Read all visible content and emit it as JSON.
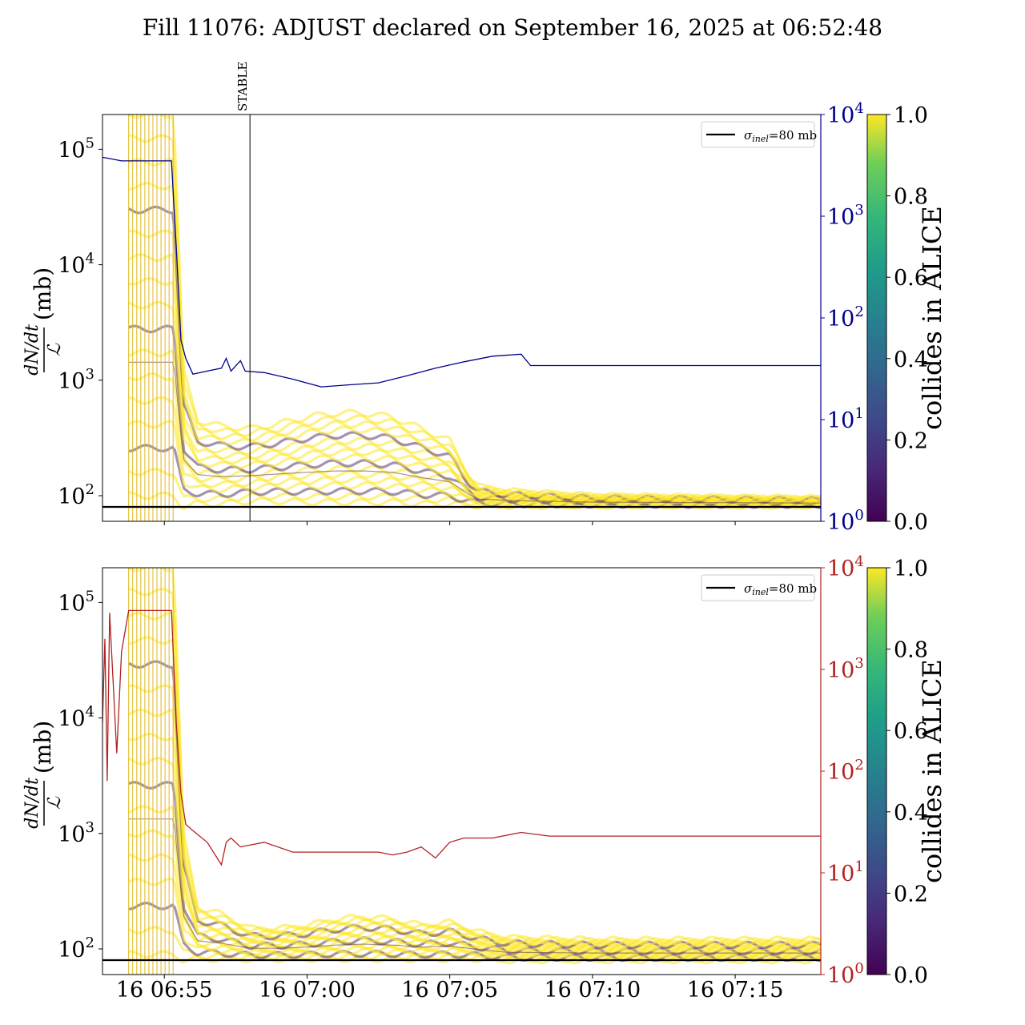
{
  "title": "Fill 11076: ADJUST declared on September 16, 2025 at 06:52:48",
  "chart_data": [
    {
      "type": "line",
      "panel": "top",
      "ylabel_fraction_num": "dN/dt",
      "ylabel_fraction_den": "ℒ",
      "ylabel_unit": "(mb)",
      "yscale": "log",
      "ylim": [
        60,
        200000
      ],
      "y_ticks": [
        {
          "v": 100,
          "base": "10",
          "exp": "2"
        },
        {
          "v": 1000,
          "base": "10",
          "exp": "3"
        },
        {
          "v": 10000,
          "base": "10",
          "exp": "4"
        },
        {
          "v": 100000,
          "base": "10",
          "exp": "5"
        }
      ],
      "xlim": [
        "06:52:50",
        "07:18:00"
      ],
      "x_tick_positions": [
        "06:55",
        "07:00",
        "07:05",
        "07:10",
        "07:15"
      ],
      "right_axis": {
        "color": "#00008b",
        "yscale": "log",
        "ylim": [
          1,
          10000
        ],
        "ticks": [
          {
            "v": 1,
            "base": "10",
            "exp": "0"
          },
          {
            "v": 10,
            "base": "10",
            "exp": "1"
          },
          {
            "v": 100,
            "base": "10",
            "exp": "2"
          },
          {
            "v": 1000,
            "base": "10",
            "exp": "3"
          },
          {
            "v": 10000,
            "base": "10",
            "exp": "4"
          }
        ],
        "series": {
          "x": [
            "06:52:50",
            "06:53:30",
            "06:54:30",
            "06:55:15",
            "06:55:25",
            "06:55:35",
            "06:55:45",
            "06:56:00",
            "06:56:30",
            "06:57:00",
            "06:57:10",
            "06:57:20",
            "06:57:40",
            "06:57:50",
            "06:58:30",
            "06:59:30",
            "07:00:30",
            "07:01:30",
            "07:02:30",
            "07:03:30",
            "07:04:30",
            "07:05:30",
            "07:06:30",
            "07:07:30",
            "07:07:50",
            "07:10:00",
            "07:14:00",
            "07:18:00"
          ],
          "y": [
            3800,
            3500,
            3500,
            3500,
            500,
            60,
            40,
            28,
            30,
            32,
            40,
            30,
            38,
            30,
            29,
            25,
            21,
            22,
            23,
            27,
            32,
            37,
            42,
            44,
            34,
            34,
            34,
            34
          ]
        }
      },
      "annotation": {
        "label": "STABLE",
        "x": "06:58:00"
      },
      "legend": {
        "label_sym": "σ",
        "label_sub": "inel",
        "label_rest": "=80 mb",
        "placement": "upper right"
      },
      "reference_line": {
        "y": 80,
        "color": "#000000"
      },
      "bunch_envelope": {
        "x": [
          "06:53:45",
          "06:55:20",
          "06:55:40",
          "06:56:10",
          "06:57:00",
          "06:58:00",
          "06:59:00",
          "07:00:00",
          "07:01:00",
          "07:02:00",
          "07:03:00",
          "07:04:00",
          "07:05:00",
          "07:05:40",
          "07:06:00",
          "07:07:00",
          "07:10:00",
          "07:18:00"
        ],
        "upper": [
          200000,
          200000,
          1200,
          450,
          400,
          380,
          420,
          480,
          520,
          520,
          480,
          380,
          300,
          150,
          120,
          110,
          100,
          95
        ],
        "lower": [
          100,
          100,
          80,
          85,
          85,
          90,
          90,
          88,
          88,
          88,
          88,
          85,
          85,
          84,
          82,
          82,
          82,
          82
        ]
      }
    },
    {
      "type": "line",
      "panel": "bottom",
      "ylabel_fraction_num": "dN/dt",
      "ylabel_fraction_den": "ℒ",
      "ylabel_unit": "(mb)",
      "yscale": "log",
      "ylim": [
        60,
        200000
      ],
      "y_ticks": [
        {
          "v": 100,
          "base": "10",
          "exp": "2"
        },
        {
          "v": 1000,
          "base": "10",
          "exp": "3"
        },
        {
          "v": 10000,
          "base": "10",
          "exp": "4"
        },
        {
          "v": 100000,
          "base": "10",
          "exp": "5"
        }
      ],
      "xlim": [
        "06:52:50",
        "07:18:00"
      ],
      "x_tick_labels": [
        "16 06:55",
        "16 07:00",
        "16 07:05",
        "16 07:10",
        "16 07:15"
      ],
      "x_tick_positions": [
        "06:55",
        "07:00",
        "07:05",
        "07:10",
        "07:15"
      ],
      "right_axis": {
        "color": "#b22222",
        "yscale": "log",
        "ylim": [
          1,
          10000
        ],
        "ticks": [
          {
            "v": 1,
            "base": "10",
            "exp": "0"
          },
          {
            "v": 10,
            "base": "10",
            "exp": "1"
          },
          {
            "v": 100,
            "base": "10",
            "exp": "2"
          },
          {
            "v": 1000,
            "base": "10",
            "exp": "3"
          },
          {
            "v": 10000,
            "base": "10",
            "exp": "4"
          }
        ],
        "series": {
          "x": [
            "06:52:50",
            "06:52:55",
            "06:53:00",
            "06:53:05",
            "06:53:20",
            "06:53:30",
            "06:53:45",
            "06:54:30",
            "06:55:15",
            "06:55:25",
            "06:55:35",
            "06:55:45",
            "06:56:00",
            "06:56:30",
            "06:57:00",
            "06:57:10",
            "06:57:20",
            "06:57:40",
            "06:58:30",
            "06:59:30",
            "07:00:30",
            "07:01:30",
            "07:02:30",
            "07:03:00",
            "07:03:30",
            "07:04:00",
            "07:04:30",
            "07:05:00",
            "07:05:30",
            "07:06:30",
            "07:07:30",
            "07:08:30",
            "07:10:00",
            "07:14:00",
            "07:18:00"
          ],
          "y": [
            300,
            2000,
            80,
            3600,
            150,
            1500,
            3800,
            3800,
            3800,
            300,
            60,
            30,
            26,
            20,
            12,
            20,
            22,
            18,
            20,
            16,
            16,
            16,
            16,
            15,
            16,
            18,
            14,
            20,
            22,
            22,
            25,
            23,
            23,
            23,
            23
          ]
        }
      },
      "legend": {
        "label_sym": "σ",
        "label_sub": "inel",
        "label_rest": "=80 mb",
        "placement": "upper right"
      },
      "reference_line": {
        "y": 80,
        "color": "#000000"
      },
      "bunch_envelope": {
        "x": [
          "06:53:45",
          "06:55:20",
          "06:55:40",
          "06:56:10",
          "06:57:00",
          "06:58:00",
          "06:59:00",
          "07:00:00",
          "07:01:00",
          "07:02:00",
          "07:03:00",
          "07:04:00",
          "07:05:00",
          "07:06:00",
          "07:07:00",
          "07:10:00",
          "07:18:00"
        ],
        "upper": [
          200000,
          200000,
          1000,
          230,
          200,
          150,
          150,
          160,
          180,
          190,
          180,
          160,
          170,
          140,
          125,
          120,
          120
        ],
        "lower": [
          90,
          90,
          80,
          82,
          82,
          82,
          82,
          82,
          82,
          82,
          82,
          82,
          82,
          82,
          80,
          80,
          80
        ]
      }
    }
  ],
  "colorbar": {
    "label": "collides in ALICE",
    "ticks": [
      "0.0",
      "0.2",
      "0.4",
      "0.6",
      "0.8",
      "1.0"
    ],
    "colormap": "viridis"
  },
  "colors": {
    "bunch_collide": "#fde725",
    "bunch_noncollide": "#440154",
    "top_right_series": "#00008b",
    "bottom_right_series": "#b22222",
    "axis": "#000000"
  }
}
